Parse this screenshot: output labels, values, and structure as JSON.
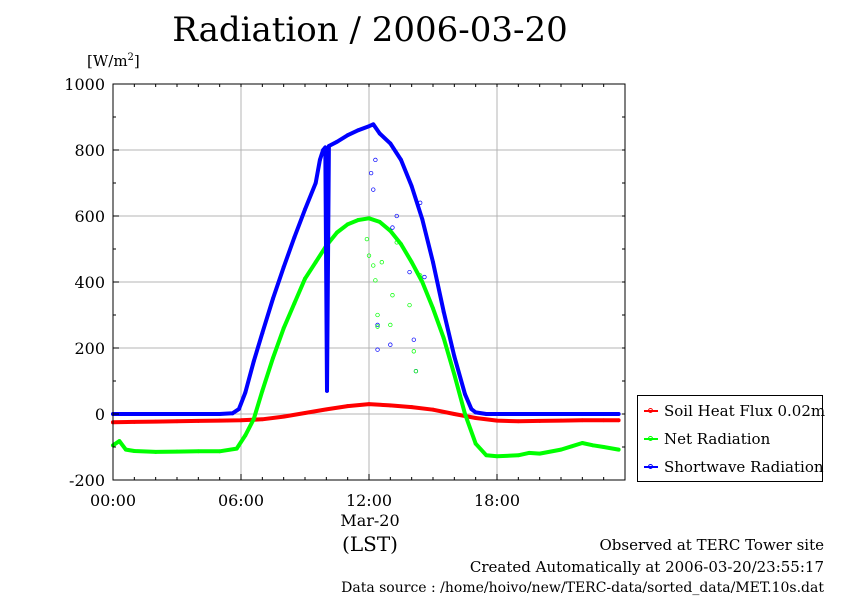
{
  "chart_data": {
    "type": "line",
    "title": "Radiation / 2006-03-20",
    "unit_label": "[W/m",
    "unit_sup": "2",
    "unit_close": "]",
    "xlabel": "(LST)",
    "date_label": "Mar-20",
    "xlim": [
      0,
      24
    ],
    "ylim": [
      -200,
      1000
    ],
    "x_ticks": [
      {
        "value": 0,
        "label": "00:00"
      },
      {
        "value": 6,
        "label": "06:00"
      },
      {
        "value": 12,
        "label": "12:00"
      },
      {
        "value": 18,
        "label": "18:00"
      }
    ],
    "y_ticks": [
      {
        "value": -200,
        "label": "-200"
      },
      {
        "value": 0,
        "label": "0"
      },
      {
        "value": 200,
        "label": "200"
      },
      {
        "value": 400,
        "label": "400"
      },
      {
        "value": 600,
        "label": "600"
      },
      {
        "value": 800,
        "label": "800"
      },
      {
        "value": 1000,
        "label": "1000"
      }
    ],
    "grid": true,
    "legend_position": "bottom-right-outside",
    "series": [
      {
        "name": "Soil Heat Flux 0.02m",
        "color": "#ff0000",
        "points": [
          [
            0,
            -25
          ],
          [
            1,
            -24
          ],
          [
            2,
            -23
          ],
          [
            3,
            -22
          ],
          [
            4,
            -21
          ],
          [
            5,
            -20
          ],
          [
            6,
            -19
          ],
          [
            7,
            -16
          ],
          [
            8,
            -8
          ],
          [
            9,
            3
          ],
          [
            10,
            14
          ],
          [
            11,
            24
          ],
          [
            12,
            30
          ],
          [
            13,
            26
          ],
          [
            14,
            21
          ],
          [
            15,
            13
          ],
          [
            16,
            0
          ],
          [
            17,
            -12
          ],
          [
            18,
            -20
          ],
          [
            19,
            -22
          ],
          [
            20,
            -21
          ],
          [
            21,
            -20
          ],
          [
            22,
            -19
          ],
          [
            23,
            -19
          ],
          [
            23.7,
            -19
          ]
        ]
      },
      {
        "name": "Net Radiation",
        "color": "#00ff00",
        "points": [
          [
            0,
            -95
          ],
          [
            0.3,
            -82
          ],
          [
            0.6,
            -108
          ],
          [
            1,
            -112
          ],
          [
            2,
            -115
          ],
          [
            3,
            -114
          ],
          [
            4,
            -113
          ],
          [
            5,
            -113
          ],
          [
            5.8,
            -105
          ],
          [
            6.2,
            -65
          ],
          [
            6.6,
            -15
          ],
          [
            7,
            70
          ],
          [
            7.5,
            170
          ],
          [
            8,
            260
          ],
          [
            8.5,
            335
          ],
          [
            9,
            410
          ],
          [
            9.5,
            460
          ],
          [
            10,
            510
          ],
          [
            10.5,
            550
          ],
          [
            11,
            575
          ],
          [
            11.5,
            588
          ],
          [
            12,
            593
          ],
          [
            12.5,
            582
          ],
          [
            13,
            555
          ],
          [
            13.5,
            515
          ],
          [
            14,
            460
          ],
          [
            14.5,
            400
          ],
          [
            15,
            320
          ],
          [
            15.5,
            230
          ],
          [
            16,
            120
          ],
          [
            16.5,
            0
          ],
          [
            17,
            -90
          ],
          [
            17.5,
            -125
          ],
          [
            18,
            -128
          ],
          [
            19,
            -125
          ],
          [
            19.5,
            -118
          ],
          [
            20,
            -120
          ],
          [
            21,
            -108
          ],
          [
            21.5,
            -98
          ],
          [
            22,
            -88
          ],
          [
            22.5,
            -95
          ],
          [
            23,
            -100
          ],
          [
            23.7,
            -108
          ]
        ]
      },
      {
        "name": "Shortwave Radiation",
        "color": "#0000ff",
        "points": [
          [
            0,
            0
          ],
          [
            1,
            0
          ],
          [
            2,
            0
          ],
          [
            3,
            0
          ],
          [
            4,
            0
          ],
          [
            5,
            0
          ],
          [
            5.6,
            2
          ],
          [
            5.9,
            15
          ],
          [
            6.2,
            65
          ],
          [
            6.6,
            160
          ],
          [
            7,
            245
          ],
          [
            7.5,
            350
          ],
          [
            8,
            445
          ],
          [
            8.5,
            535
          ],
          [
            9,
            620
          ],
          [
            9.5,
            700
          ],
          [
            9.7,
            770
          ],
          [
            9.85,
            800
          ],
          [
            9.95,
            808
          ],
          [
            10.03,
            70
          ],
          [
            10.12,
            812
          ],
          [
            10.5,
            825
          ],
          [
            11,
            845
          ],
          [
            11.5,
            860
          ],
          [
            12,
            872
          ],
          [
            12.2,
            878
          ],
          [
            12.5,
            850
          ],
          [
            13,
            820
          ],
          [
            13.5,
            770
          ],
          [
            14,
            690
          ],
          [
            14.5,
            590
          ],
          [
            15,
            460
          ],
          [
            15.5,
            310
          ],
          [
            16,
            175
          ],
          [
            16.5,
            60
          ],
          [
            16.8,
            15
          ],
          [
            17,
            5
          ],
          [
            17.5,
            0
          ],
          [
            18,
            0
          ],
          [
            19,
            0
          ],
          [
            20,
            0
          ],
          [
            21,
            0
          ],
          [
            22,
            0
          ],
          [
            23,
            0
          ],
          [
            23.7,
            0
          ]
        ]
      }
    ],
    "outliers": [
      {
        "series": "Shortwave Radiation",
        "points": [
          [
            12.1,
            730
          ],
          [
            12.2,
            680
          ],
          [
            12.3,
            770
          ],
          [
            12.4,
            270
          ],
          [
            12.4,
            195
          ],
          [
            13.0,
            210
          ],
          [
            13.1,
            565
          ],
          [
            13.3,
            600
          ],
          [
            13.9,
            430
          ],
          [
            14.1,
            225
          ],
          [
            14.2,
            130
          ],
          [
            14.4,
            640
          ],
          [
            14.6,
            415
          ]
        ]
      },
      {
        "series": "Net Radiation",
        "points": [
          [
            11.9,
            530
          ],
          [
            12.0,
            480
          ],
          [
            12.2,
            450
          ],
          [
            12.3,
            405
          ],
          [
            12.4,
            300
          ],
          [
            12.4,
            265
          ],
          [
            12.6,
            460
          ],
          [
            13.0,
            270
          ],
          [
            13.1,
            360
          ],
          [
            13.3,
            520
          ],
          [
            13.9,
            330
          ],
          [
            14.1,
            190
          ],
          [
            14.2,
            130
          ],
          [
            14.4,
            420
          ]
        ]
      }
    ]
  },
  "footer": {
    "observed": "Observed at TERC Tower site",
    "created": "Created Automatically at 2006-03-20/23:55:17",
    "source": "Data source : /home/hoivo/new/TERC-data/sorted_data/MET.10s.dat"
  },
  "colors": {
    "soil": "#ff0000",
    "net": "#00ff00",
    "shortwave": "#0000ff",
    "grid": "#b4b4b4"
  }
}
